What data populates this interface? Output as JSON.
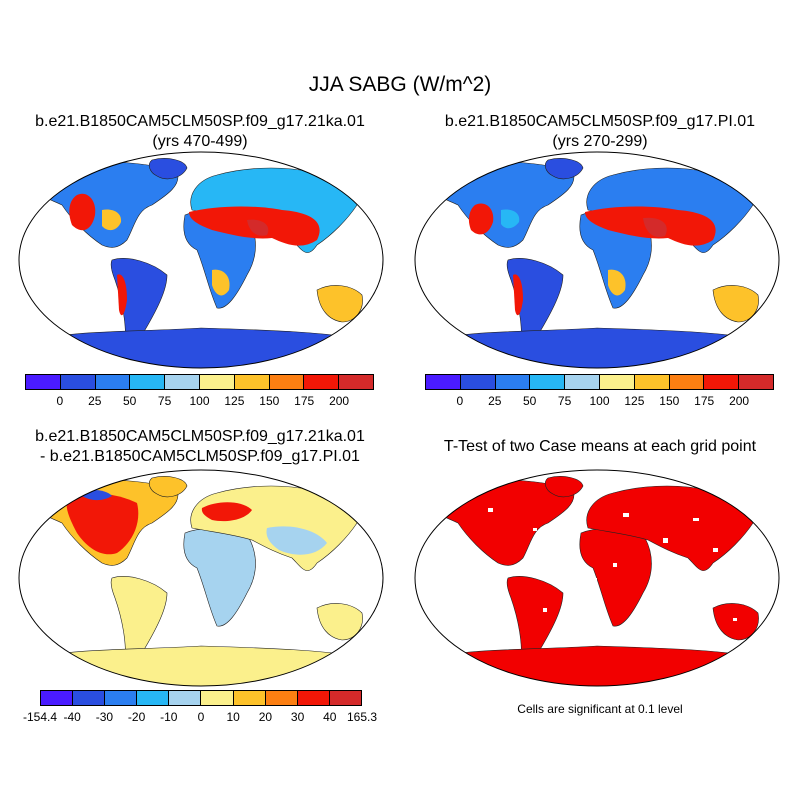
{
  "figure": {
    "title": "JJA SABG (W/m^2)",
    "panel1": {
      "title_line1": "b.e21.B1850CAM5CLM50SP.f09_g17.21ka.01",
      "title_line2": "(yrs 470-499)"
    },
    "panel2": {
      "title_line1": "b.e21.B1850CAM5CLM50SP.f09_g17.PI.01",
      "title_line2": "(yrs 270-299)"
    },
    "panel3": {
      "title_line1": "b.e21.B1850CAM5CLM50SP.f09_g17.21ka.01",
      "title_line2": "- b.e21.B1850CAM5CLM50SP.f09_g17.PI.01"
    },
    "panel4": {
      "title": "T-Test of two Case means at each grid point",
      "note": "Cells are significant at 0.1 level"
    }
  },
  "colorbar_main": {
    "colors": [
      "#4a1bff",
      "#2a4ee0",
      "#2b7ef0",
      "#27b7f5",
      "#a6d3ef",
      "#fbf08c",
      "#fdc22a",
      "#fc7f12",
      "#f21707",
      "#d42a2a"
    ],
    "tick_labels": [
      "0",
      "25",
      "50",
      "75",
      "100",
      "125",
      "150",
      "175",
      "200"
    ]
  },
  "colorbar_diff": {
    "colors": [
      "#4a1bff",
      "#2a4ee0",
      "#2b7ef0",
      "#27b7f5",
      "#a6d3ef",
      "#fbf08c",
      "#fdc22a",
      "#fc7f12",
      "#f21707",
      "#d42a2a"
    ],
    "tick_labels": [
      "-154.4",
      "-40",
      "-30",
      "-20",
      "-10",
      "0",
      "10",
      "20",
      "30",
      "40",
      "165.3"
    ]
  },
  "colors": {
    "ocean": "#ffffff",
    "outline": "#222222",
    "significant": "#f20000",
    "antarctica_abs": "#2a4ee0",
    "antarctica_diff": "#fbf08c"
  }
}
